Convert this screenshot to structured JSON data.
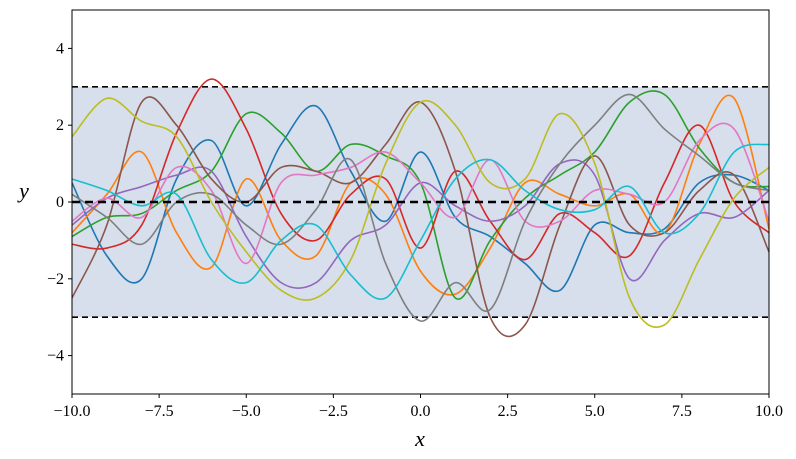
{
  "chart_data": {
    "type": "line",
    "xlabel": "x",
    "ylabel": "y",
    "x": [
      -10,
      -9,
      -8,
      -7,
      -6,
      -5,
      -4,
      -3,
      -2,
      -1,
      0,
      1,
      2,
      3,
      4,
      5,
      6,
      7,
      8,
      9,
      10
    ],
    "band": [
      -3,
      3
    ],
    "band_color": "#d6dfeb",
    "mean_line": 0,
    "series": [
      {
        "color": "#1f77b4",
        "values": [
          0.5,
          -1.4,
          -2.0,
          0.6,
          1.6,
          -0.1,
          1.5,
          2.5,
          0.8,
          -0.5,
          1.3,
          -0.4,
          -0.9,
          -1.6,
          -2.3,
          -0.6,
          -0.8,
          -0.7,
          0.5,
          0.7,
          0.3
        ]
      },
      {
        "color": "#ff7f0e",
        "values": [
          -0.8,
          0.2,
          1.3,
          -0.8,
          -1.7,
          0.6,
          -1.0,
          -1.4,
          0.5,
          0.2,
          -1.8,
          -2.4,
          -1.2,
          0.5,
          0.2,
          -0.1,
          0.2,
          -0.8,
          1.5,
          2.7,
          -0.7
        ]
      },
      {
        "color": "#2ca02c",
        "values": [
          -0.9,
          -0.4,
          -0.3,
          0.3,
          0.8,
          2.3,
          1.8,
          0.8,
          1.5,
          1.2,
          0.5,
          -2.5,
          -1.0,
          0.1,
          0.7,
          1.3,
          2.6,
          2.8,
          1.4,
          0.5,
          0.4
        ]
      },
      {
        "color": "#d62728",
        "values": [
          -1.1,
          -1.2,
          -0.6,
          1.8,
          3.2,
          1.9,
          -0.3,
          -1.0,
          0.2,
          0.6,
          -1.2,
          0.8,
          -0.5,
          -1.5,
          -0.3,
          -0.8,
          -1.4,
          0.5,
          2.0,
          0.0,
          -0.8
        ]
      },
      {
        "color": "#9467bd",
        "values": [
          -0.6,
          0.1,
          0.4,
          0.7,
          0.8,
          -0.9,
          -2.1,
          -2.1,
          -1.0,
          -0.6,
          0.5,
          -0.1,
          -0.5,
          -0.1,
          1.0,
          0.7,
          -2.0,
          -1.0,
          -0.3,
          -0.4,
          0.3
        ]
      },
      {
        "color": "#8c564b",
        "values": [
          -2.5,
          -0.6,
          2.6,
          2.0,
          0.6,
          0.0,
          0.9,
          0.8,
          0.5,
          1.5,
          2.6,
          0.8,
          -3.0,
          -3.2,
          -0.6,
          1.2,
          -0.6,
          -0.8,
          0.3,
          0.7,
          -1.3
        ]
      },
      {
        "color": "#e377c2",
        "values": [
          -0.5,
          0.1,
          -0.4,
          0.9,
          0.3,
          -1.6,
          0.5,
          0.7,
          0.9,
          1.3,
          0.5,
          -0.4,
          1.1,
          -0.5,
          -0.5,
          0.3,
          0.2,
          0.0,
          1.6,
          1.9,
          -0.5
        ]
      },
      {
        "color": "#7f7f7f",
        "values": [
          0.2,
          -0.4,
          -1.1,
          0.0,
          0.2,
          -0.6,
          -1.1,
          -0.2,
          1.1,
          -1.6,
          -3.1,
          -2.1,
          -2.8,
          -0.5,
          1.0,
          2.0,
          2.8,
          1.9,
          1.2,
          0.5,
          0.3
        ]
      },
      {
        "color": "#bcbd22",
        "values": [
          1.7,
          2.7,
          2.1,
          1.7,
          0.0,
          -1.3,
          -2.3,
          -2.5,
          -1.5,
          1.0,
          2.6,
          2.0,
          0.5,
          0.6,
          2.3,
          1.0,
          -2.5,
          -3.2,
          -1.5,
          0.1,
          0.9
        ]
      },
      {
        "color": "#17becf",
        "values": [
          0.6,
          0.3,
          -0.1,
          0.2,
          -1.5,
          -2.1,
          -1.0,
          -0.6,
          -1.9,
          -2.5,
          -1.0,
          0.6,
          1.1,
          0.3,
          -0.2,
          -0.2,
          0.4,
          -0.8,
          -0.3,
          1.3,
          1.5
        ]
      }
    ],
    "xlim": [
      -10,
      10
    ],
    "ylim": [
      -5,
      5
    ],
    "xticks": [
      {
        "value": -10,
        "label": "−10.0"
      },
      {
        "value": -7.5,
        "label": "−7.5"
      },
      {
        "value": -5,
        "label": "−5.0"
      },
      {
        "value": -2.5,
        "label": "−2.5"
      },
      {
        "value": 0,
        "label": "0.0"
      },
      {
        "value": 2.5,
        "label": "2.5"
      },
      {
        "value": 5,
        "label": "5.0"
      },
      {
        "value": 7.5,
        "label": "7.5"
      },
      {
        "value": 10,
        "label": "10.0"
      }
    ],
    "yticks": [
      {
        "value": -4,
        "label": "−4"
      },
      {
        "value": -2,
        "label": "−2"
      },
      0,
      2,
      4
    ]
  }
}
